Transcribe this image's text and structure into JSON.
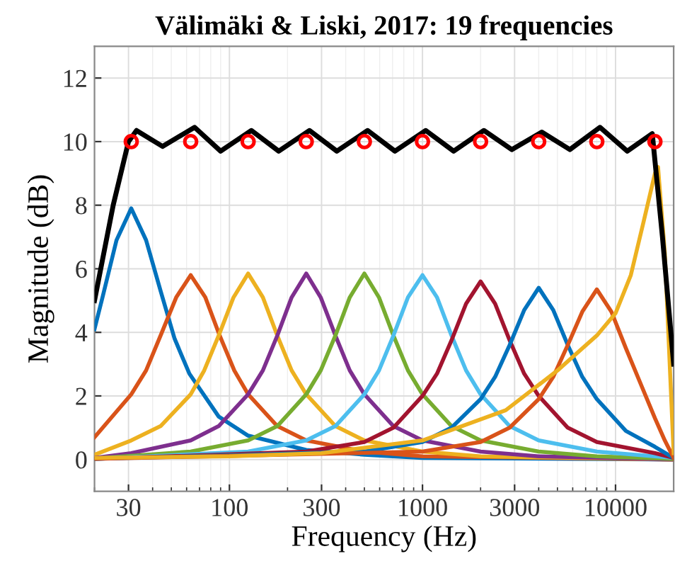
{
  "chart_data": {
    "type": "line",
    "title": "Välimäki & Liski, 2017: 19 frequencies",
    "xlabel": "Frequency (Hz)",
    "ylabel": "Magnitude (dB)",
    "log": "x",
    "xlim": [
      20,
      20000
    ],
    "xticks": [
      30,
      100,
      300,
      1000,
      3000,
      10000
    ],
    "ylim": [
      -1,
      13
    ],
    "yticks": [
      0,
      2,
      4,
      6,
      8,
      10,
      12
    ],
    "grid": true,
    "legend": false,
    "line_style": "solid",
    "series": [
      {
        "color": "#0072bd",
        "x": [
          20,
          22,
          26,
          31,
          37,
          44,
          52,
          62,
          88,
          125,
          250,
          500,
          1000,
          20000
        ],
        "values": [
          4.1,
          5.1,
          6.9,
          7.9,
          6.9,
          5.3,
          3.8,
          2.7,
          1.35,
          0.75,
          0.3,
          0.15,
          0.05,
          0
        ]
      },
      {
        "color": "#d95319",
        "x": [
          20,
          31,
          37,
          44,
          53,
          63,
          75,
          89,
          106,
          125,
          177,
          250,
          500,
          1000,
          20000
        ],
        "values": [
          0.7,
          2.05,
          2.8,
          3.9,
          5.1,
          5.8,
          5.1,
          3.9,
          2.8,
          2.05,
          1.05,
          0.6,
          0.25,
          0.1,
          0
        ]
      },
      {
        "color": "#edb120",
        "x": [
          20,
          31,
          44,
          63,
          74,
          88,
          105,
          125,
          149,
          177,
          210,
          250,
          354,
          500,
          1000,
          2000,
          20000
        ],
        "values": [
          0.15,
          0.6,
          1.05,
          2.05,
          2.8,
          3.9,
          5.1,
          5.85,
          5.1,
          3.9,
          2.8,
          2.05,
          1.05,
          0.6,
          0.25,
          0.1,
          0
        ]
      },
      {
        "color": "#7e2f8e",
        "x": [
          20,
          31,
          63,
          88,
          125,
          149,
          177,
          210,
          250,
          297,
          354,
          420,
          500,
          707,
          1000,
          2000,
          4000,
          20000
        ],
        "values": [
          0.05,
          0.2,
          0.6,
          1.05,
          2.05,
          2.8,
          3.9,
          5.1,
          5.85,
          5.1,
          3.9,
          2.8,
          2.05,
          1.05,
          0.6,
          0.25,
          0.1,
          0
        ]
      },
      {
        "color": "#77ac30",
        "x": [
          20,
          63,
          125,
          177,
          250,
          297,
          354,
          420,
          500,
          595,
          707,
          841,
          1000,
          1414,
          2000,
          4000,
          8000,
          20000
        ],
        "values": [
          0.03,
          0.25,
          0.6,
          1.05,
          2.05,
          2.8,
          3.9,
          5.1,
          5.85,
          5.1,
          3.9,
          2.8,
          2.05,
          1.05,
          0.6,
          0.25,
          0.1,
          0.02
        ]
      },
      {
        "color": "#4dbeee",
        "x": [
          20,
          125,
          250,
          354,
          500,
          595,
          707,
          841,
          1000,
          1189,
          1414,
          1682,
          2000,
          2828,
          4000,
          8000,
          16000,
          20000
        ],
        "values": [
          0.02,
          0.25,
          0.6,
          1.05,
          2.05,
          2.8,
          3.9,
          5.1,
          5.8,
          5.1,
          3.9,
          2.8,
          2.05,
          1.05,
          0.6,
          0.25,
          0.1,
          0.05
        ]
      },
      {
        "color": "#a2142f",
        "x": [
          20,
          250,
          500,
          707,
          1000,
          1189,
          1414,
          1682,
          2000,
          2378,
          2828,
          3364,
          4000,
          5657,
          8000,
          16000,
          20000
        ],
        "values": [
          0.02,
          0.25,
          0.55,
          1.0,
          2.0,
          2.7,
          3.75,
          4.9,
          5.6,
          4.9,
          3.75,
          2.7,
          2.0,
          1.0,
          0.55,
          0.2,
          0.05
        ]
      },
      {
        "color": "#0072bd",
        "x": [
          20,
          500,
          1000,
          1414,
          2000,
          2378,
          2828,
          3364,
          4000,
          4757,
          5657,
          6727,
          8000,
          11314,
          16000,
          20000
        ],
        "values": [
          0.02,
          0.25,
          0.55,
          1.0,
          1.9,
          2.6,
          3.6,
          4.7,
          5.4,
          4.7,
          3.6,
          2.6,
          1.9,
          0.9,
          0.4,
          0.05
        ]
      },
      {
        "color": "#d95319",
        "x": [
          20,
          1000,
          2000,
          2828,
          4000,
          4757,
          5657,
          6727,
          8000,
          9514,
          11314,
          13454,
          16000,
          18000,
          20000
        ],
        "values": [
          0.02,
          0.25,
          0.55,
          1.0,
          1.9,
          2.6,
          3.6,
          4.65,
          5.35,
          4.65,
          3.5,
          2.4,
          1.3,
          0.6,
          0.05
        ]
      },
      {
        "color": "#edb120",
        "x": [
          20,
          100,
          300,
          1000,
          2700,
          5000,
          8000,
          10000,
          12000,
          14000,
          16000,
          16600,
          18000,
          20000
        ],
        "values": [
          0.05,
          0.1,
          0.2,
          0.6,
          1.55,
          2.8,
          3.9,
          4.6,
          5.8,
          7.5,
          9.0,
          9.2,
          6.5,
          0.2
        ]
      },
      {
        "color": "#000000",
        "x": [
          20,
          25,
          30,
          33,
          45,
          66,
          90,
          130,
          180,
          260,
          360,
          520,
          720,
          1040,
          1450,
          2080,
          2900,
          4150,
          5800,
          8300,
          11500,
          15500,
          17500,
          20000
        ],
        "values": [
          5.0,
          8.0,
          10.0,
          10.35,
          9.85,
          10.45,
          9.7,
          10.35,
          9.7,
          10.35,
          9.7,
          10.35,
          9.7,
          10.35,
          9.7,
          10.35,
          9.75,
          10.3,
          9.75,
          10.45,
          9.7,
          10.25,
          7.0,
          3.0
        ]
      },
      {
        "type": "scatter",
        "color": "#ff0000",
        "marker": "circle",
        "x": [
          31,
          63,
          125,
          250,
          500,
          1000,
          2000,
          4000,
          8000,
          16000
        ],
        "values": [
          10,
          10,
          10,
          10,
          10,
          10,
          10,
          10,
          10,
          10
        ]
      }
    ]
  }
}
